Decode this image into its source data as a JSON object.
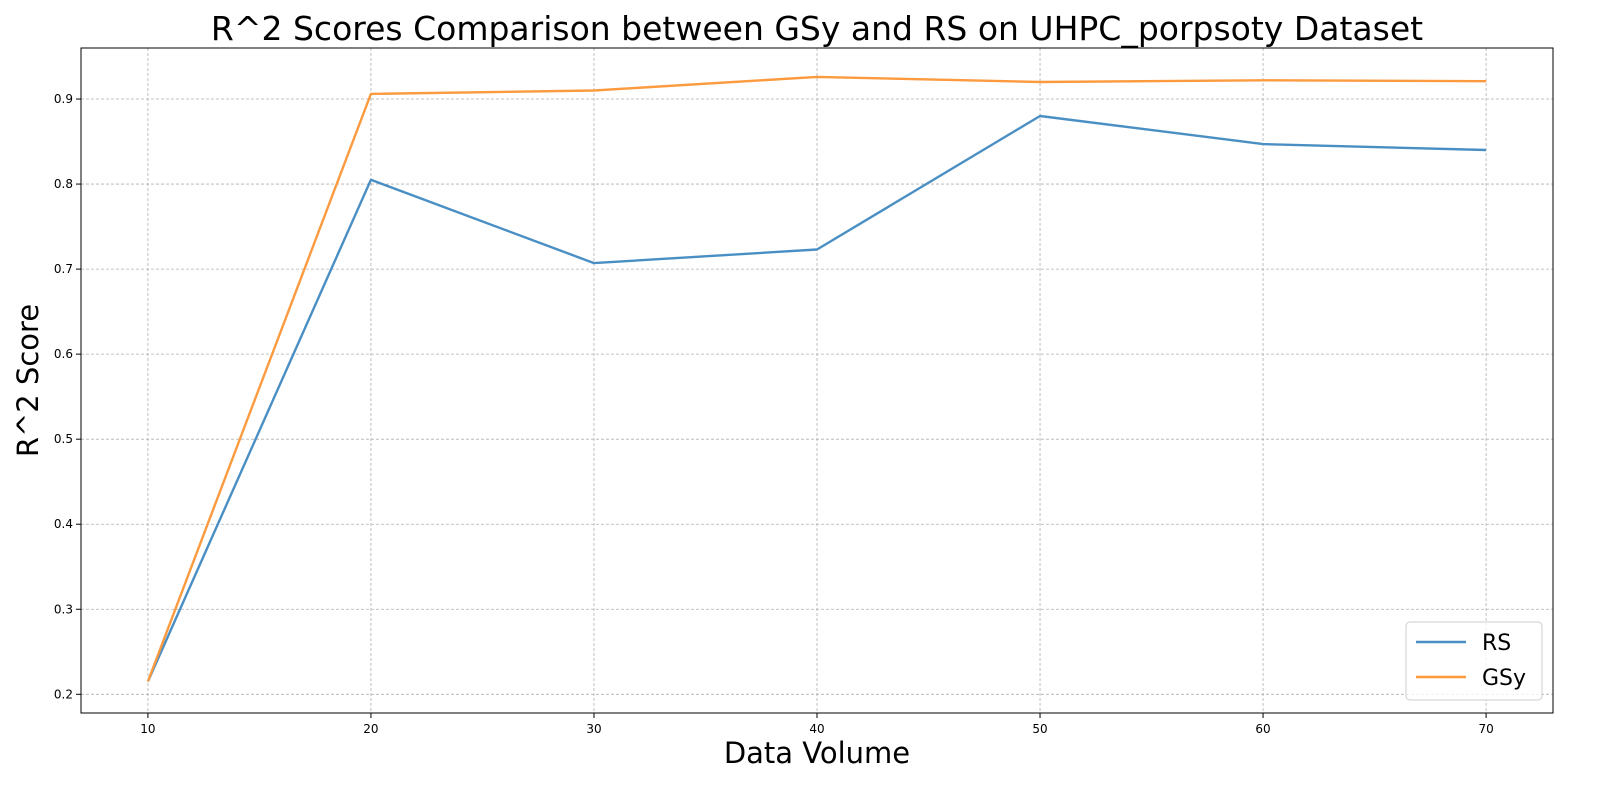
{
  "chart_data": {
    "type": "line",
    "title": "R^2 Scores Comparison between GSy and RS on UHPC_porpsoty Dataset",
    "xlabel": "Data Volume",
    "ylabel": "R^2 Score",
    "x": [
      10,
      20,
      30,
      40,
      50,
      60,
      70
    ],
    "xticks": [
      "10",
      "20",
      "30",
      "40",
      "50",
      "60",
      "70"
    ],
    "yticks": [
      "0.2",
      "0.3",
      "0.4",
      "0.5",
      "0.6",
      "0.7",
      "0.8",
      "0.9"
    ],
    "xlim": [
      7,
      73
    ],
    "ylim": [
      0.178,
      0.96
    ],
    "grid": true,
    "legend_position": "bottom-right",
    "series": [
      {
        "name": "RS",
        "color": "#4a8fc4",
        "values": [
          0.215,
          0.805,
          0.707,
          0.723,
          0.88,
          0.847,
          0.84
        ]
      },
      {
        "name": "GSy",
        "color": "#fb9a3e",
        "values": [
          0.215,
          0.906,
          0.91,
          0.926,
          0.92,
          0.922,
          0.921
        ]
      }
    ]
  }
}
